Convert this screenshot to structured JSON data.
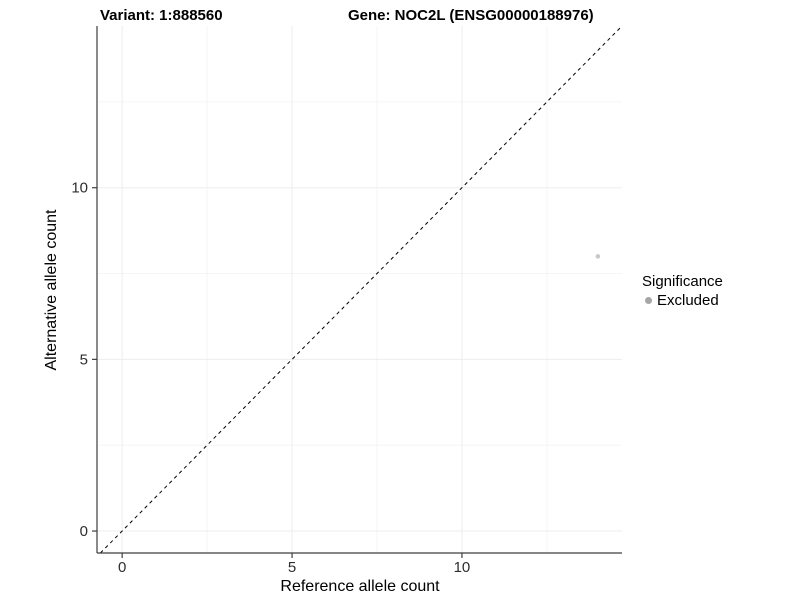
{
  "header": {
    "title_left": "Variant: 1:888560",
    "title_right": "Gene: NOC2L (ENSG00000188976)"
  },
  "legend": {
    "title": "Significance",
    "items": [
      {
        "label": "Excluded",
        "color": "#a6a6a6"
      }
    ]
  },
  "chart_data": {
    "type": "scatter",
    "title": "Variant: 1:888560 — Gene: NOC2L (ENSG00000188976)",
    "xlabel": "Reference allele count",
    "ylabel": "Alternative allele count",
    "xlim": [
      -0.74,
      14.71
    ],
    "ylim": [
      -0.64,
      14.71
    ],
    "x_major_ticks": [
      0,
      5,
      10
    ],
    "x_minor_ticks": [
      2.5,
      7.5,
      12.5
    ],
    "y_major_ticks": [
      0,
      5,
      10
    ],
    "y_minor_ticks": [
      2.5,
      7.5,
      12.5
    ],
    "grid": "major and minor, light gray on white",
    "legend_position": "right",
    "reference_line": {
      "kind": "identity",
      "slope": 1,
      "intercept": 0,
      "linetype": "dashed",
      "color": "#000000"
    },
    "series": [
      {
        "name": "Excluded",
        "marker": "circle",
        "color": "#c8c8c8",
        "points": [
          {
            "x": 14,
            "y": 8
          }
        ]
      }
    ]
  },
  "style": {
    "background": "#ffffff",
    "axis_line": "#3d3d3d",
    "tick_mark": "#3d3d3d",
    "tick_label": "#2e2e2e",
    "grid_major": "#ededed",
    "grid_minor": "#f5f5f5",
    "point_color": "#c8c8c8",
    "legend_point_color": "#a6a6a6",
    "reference_line_color": "#000000",
    "text_color": "#000000"
  }
}
